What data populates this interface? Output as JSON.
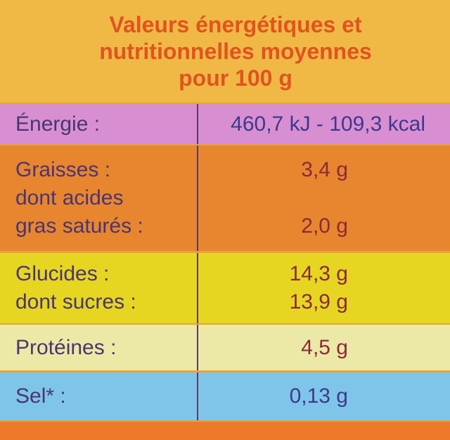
{
  "header": {
    "title": [
      "Valeurs énergétiques et",
      "nutritionnelles moyennes",
      "pour 100 g"
    ]
  },
  "table": {
    "rows": [
      {
        "lines": [
          {
            "label": "Énergie :",
            "value": "460,7 kJ - 109,3 kcal"
          }
        ]
      },
      {
        "lines": [
          {
            "label": "Graisses :",
            "value": "3,4 g"
          },
          {
            "label": "dont acides"
          },
          {
            "label": "gras saturés :",
            "value": "2,0 g"
          }
        ]
      },
      {
        "lines": [
          {
            "label": "Glucides :",
            "value": "14,3 g"
          },
          {
            "label": "dont sucres :",
            "value": "13,9 g"
          }
        ]
      },
      {
        "lines": [
          {
            "label": "Protéines :",
            "value": "4,5 g"
          }
        ]
      },
      {
        "lines": [
          {
            "label": "Sel* :",
            "value": "0,13 g"
          }
        ]
      }
    ]
  }
}
